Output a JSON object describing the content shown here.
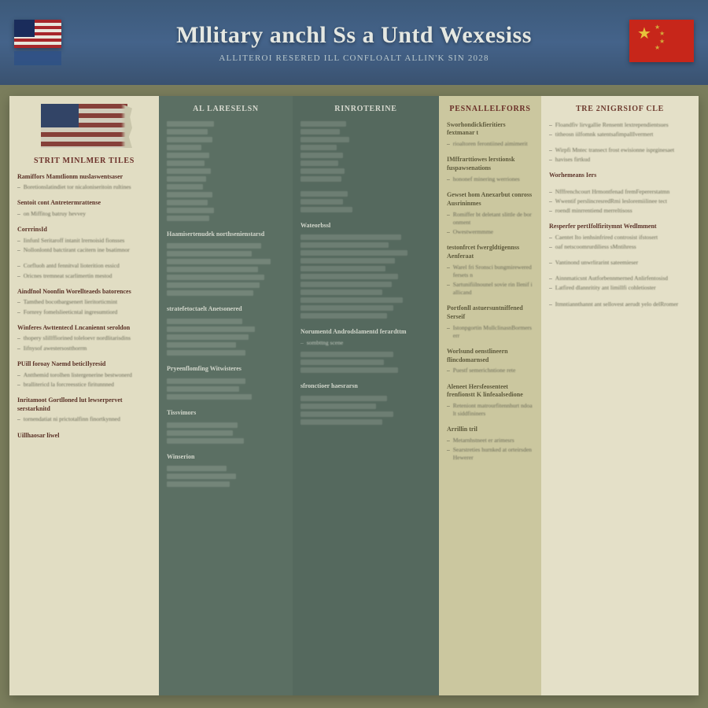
{
  "header": {
    "title": "Mllitary anchl Ss a Untd Wexesiss",
    "subtitle": "Alliteroi Resered ill Confloalt Allin'k SIN 2028",
    "bg_gradient": [
      "#3d5a7a",
      "#44638a",
      "#3a5270"
    ],
    "flag_left": {
      "type": "us",
      "stripe_red": "#a7262a",
      "stripe_white": "#e8e6dc",
      "canton": "#1a2c5b"
    },
    "flag_right": {
      "type": "cn",
      "field": "#c7261a",
      "star": "#e7c23b",
      "label": "FRAG"
    }
  },
  "panel": {
    "bg": "#d9d5b8",
    "columns": [
      {
        "key": "a",
        "bg": "#e1ddc3",
        "flag": {
          "stripe_red": "#8a3a33",
          "stripe_white": "#ded9c6",
          "canton": "#2b3f66"
        },
        "heading": "Strit Minlmer Tiles",
        "blocks": [
          {
            "h": "Ramiffors Mamtlionm nuslaswentsaser",
            "items": [
              "Boretionslatindiet tor nicaloniseritoin rultines"
            ]
          },
          {
            "h": "Sentoit cont Antretermrattense",
            "items": [
              "on Miffitog batruy hevvey"
            ]
          },
          {
            "h": "CorrrinsId",
            "items": [
              "Iinfunl Seritaroff intanit lrernoisid fionsses",
              "Nollonlontd batctirant cacitern ine bsatimnor"
            ]
          },
          {
            "h": "",
            "items": [
              "Corfluoh antd fennitval lioterition essicd",
              "Oricnes tremneat scarlimertin mestod"
            ]
          },
          {
            "h": "Aindfnol Noonfin Worellteaeds batorences",
            "items": [
              "Tamthed bocotbargsenert lieritorticmint",
              "Fornrey fomelslieeticntal ingresumtiord"
            ]
          },
          {
            "h": "Winferes Awttentecd Lncaniennt seroldon",
            "items": [
              "thopery sIillffiorined toleloevr nordlitarisdins",
              "Iifnysof awestersostthorrm"
            ]
          },
          {
            "h": "PUill foroay Naemd beticIlyresid",
            "items": [
              "Antthemid torolhen listergenerine bestwonerd",
              "brallitericd la forcreesstice firitunnned"
            ]
          },
          {
            "h": "Inritamoot Gortlloned lut lewserpervet serstarknitd",
            "items": [
              "tornendatiat ni prictotalfinn finortkynned"
            ]
          },
          {
            "h": "Uillhaosar liwel",
            "items": []
          }
        ]
      },
      {
        "key": "b",
        "bg": "#5b6f63",
        "heading": "AL LARESELSN",
        "groups": [
          {
            "h": "",
            "bars": [
              60,
              52,
              58,
              44,
              54,
              48,
              56,
              50,
              46,
              58,
              52,
              60,
              54
            ]
          },
          {
            "h": "Haamisertenudek northsenienstarsd",
            "bars": [
              120,
              108,
              132,
              116,
              124,
              118,
              110
            ]
          },
          {
            "h": "stratefetoctaelt Anetsonered",
            "bars": [
              96,
              112,
              104,
              88,
              100
            ]
          },
          {
            "h": "Pryeenflomfing Witwisteres",
            "bars": [
              100,
              92,
              108
            ]
          },
          {
            "h": "Tissvimors",
            "bars": [
              90,
              84,
              98
            ]
          },
          {
            "h": "Winserion",
            "bars": [
              76,
              88,
              80
            ]
          }
        ]
      },
      {
        "key": "c",
        "bg": "#55695e",
        "heading": "Rinroterine",
        "groups": [
          {
            "h": "",
            "bars": [
              58,
              50,
              62,
              46,
              54,
              48,
              56,
              52
            ]
          },
          {
            "h": "",
            "bars": [
              60,
              54,
              66
            ]
          },
          {
            "h": "Wateorbssl",
            "bars": [
              128,
              112,
              136,
              120,
              108,
              124,
              116,
              104,
              130,
              118,
              110
            ]
          },
          {
            "h": "Norumentd Androdslamentd ferardttm",
            "items": [
              "sombttng scene"
            ],
            "bars": [
              118,
              106,
              124
            ]
          },
          {
            "h": "sfronctioer haesrarsn",
            "bars": [
              110,
              96,
              118,
              104
            ]
          }
        ]
      },
      {
        "key": "d",
        "bg": "#cbc79f",
        "heading": "PESNALLELFORRS",
        "groups": [
          {
            "h": "Sworhondickfieritiers fextmanar t",
            "items": [
              "rioaltoren ferontiined aimimerit"
            ]
          },
          {
            "h": "IMffrarttiowes lerstionsk fuspawsenations",
            "items": [
              "hononef minering werriones"
            ]
          },
          {
            "h": "Gewset hom Anexarbut conross Ausrininmes",
            "items": [
              "Romiffer bt deletant slittle de boronment",
              "Owestwermmme"
            ]
          },
          {
            "h": "testonfrcet fwergldtigennss Aenferaat",
            "items": [
              "Warel fri Sronsci bungmirewered fersets n",
              "Sartunifiilnounel sovie rin Ilenif iallicand"
            ]
          },
          {
            "h": "Portfonll astuersuntniffened Serseif",
            "items": [
              "Istonpgortin MullclinasnBormerserr"
            ]
          },
          {
            "h": "Worlsund oenstlineern flincdomarnsed",
            "items": [
              "Puestf semerichntione rete"
            ]
          },
          {
            "h": "Aleneet Hersfeosenteet frenfionstt K linfeaalsedione",
            "items": [
              "Reteniont matrourfitennhurt ndoalt siddfininers"
            ]
          },
          {
            "h": "Arrillin tril",
            "items": [
              "Metarnhstneet er arimesrs",
              "Searstreties hurnked at orteirsden Hewerer"
            ]
          }
        ]
      },
      {
        "key": "e",
        "bg": "#e4e0c8",
        "heading": "TRe 2NIGRSIOF CLE",
        "blocks": [
          {
            "h": "",
            "items": [
              "Floandfiv lirvgallie Rensentt lextrependientsues",
              "titheosn iilfomnk satentsafimpallIvermert"
            ]
          },
          {
            "h": "",
            "items": [
              "Wirpfi Mntec transect frost ewisionne isprginesaet",
              "havises firtkud"
            ]
          },
          {
            "h": "Worhemeans Iers",
            "items": []
          },
          {
            "h": "",
            "items": [
              "Nfffrenchcourt Hrmontfenad fremFepererstatmn",
              "Wwentif perslincresredRmi lesloremiilinee tect",
              "roendl minrrentiend merreltisoss"
            ]
          },
          {
            "h": "Resperfer pertIfolfiritymnt Wedlmment",
            "items": [
              "Caentet Ito ienhsinfrired controsist ifstosert",
              "oaf netscoomrurdiliess sMntihress"
            ]
          },
          {
            "h": "",
            "items": [
              "Vantinond unwrlirarint sateemieser"
            ]
          },
          {
            "h": "",
            "items": [
              "Ainnmaticsnt Autforbennmerned Anlirfentosisd",
              "Latfired dlannritity ant limillfi cohletioster"
            ]
          },
          {
            "h": "",
            "items": [
              "Itmntiannthannt ant sellovest aerudt yelo delRromer"
            ]
          }
        ]
      }
    ]
  }
}
